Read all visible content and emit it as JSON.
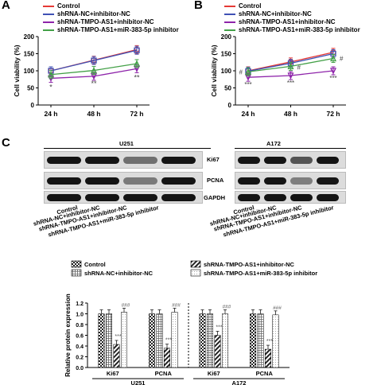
{
  "panels": {
    "a": "A",
    "b": "B",
    "c": "C"
  },
  "viability": {
    "ylabel": "Cell viability (%)",
    "xticks": [
      "24 h",
      "48 h",
      "72 h"
    ],
    "yticks": [
      "0",
      "50",
      "100",
      "150",
      "200"
    ],
    "legend": [
      "Control",
      "shRNA-NC+inhibitor-NC",
      "shRNA-TMPO-AS1+inhibitor-NC",
      "shRNA-TMPO-AS1+miR-383-5p inhibitor"
    ],
    "colors": [
      "#e53935",
      "#3f51b5",
      "#8e24aa",
      "#43a047"
    ],
    "sigA": {
      "s24": "*",
      "s48": "**",
      "s72": "**"
    },
    "sigB": {
      "s24": "***",
      "s48": "***",
      "s72": "***",
      "h24": "#",
      "h48": "#",
      "h72": "#"
    }
  },
  "blots": {
    "u251": "U251",
    "a172": "A172",
    "rows": [
      "Ki67",
      "PCNA",
      "GAPDH"
    ],
    "lane_labels": [
      "Control",
      "shRNA-NC+inhibitor-NC",
      "shRNA-TMPO-AS1+inhibitor-NC",
      "shRNA-TMPO-AS1+miR-383-5p inhibitor"
    ]
  },
  "bars": {
    "legend": [
      "Control",
      "shRNA-NC+inhibitor-NC",
      "shRNA-TMPO-AS1+inhibitor-NC",
      "shRNA-TMPO-AS1+miR-383-5p inhibitor"
    ],
    "ylabel": "Relative protein expression",
    "yticks": [
      "0.0",
      "0.2",
      "0.4",
      "0.6",
      "0.8",
      "1.0",
      "1.2"
    ],
    "groups": [
      "Ki67",
      "PCNA",
      "Ki67",
      "PCNA"
    ],
    "lines": [
      "U251",
      "A172"
    ],
    "sig1": "***",
    "sig2": "###"
  },
  "chart_data": [
    {
      "type": "line",
      "panel": "A",
      "x": [
        "24 h",
        "48 h",
        "72 h"
      ],
      "ylabel": "Cell viability (%)",
      "ylim": [
        0,
        200
      ],
      "series": [
        {
          "name": "Control",
          "values": [
            100,
            131,
            162
          ]
        },
        {
          "name": "shRNA-NC+inhibitor-NC",
          "values": [
            100,
            130,
            160
          ]
        },
        {
          "name": "shRNA-TMPO-AS1+inhibitor-NC",
          "values": [
            78,
            84,
            106
          ]
        },
        {
          "name": "shRNA-TMPO-AS1+miR-383-5p inhibitor",
          "values": [
            89,
            101,
            121
          ]
        }
      ]
    },
    {
      "type": "line",
      "panel": "B",
      "x": [
        "24 h",
        "48 h",
        "72 h"
      ],
      "ylabel": "Cell viability (%)",
      "ylim": [
        0,
        200
      ],
      "series": [
        {
          "name": "Control",
          "values": [
            100,
            126,
            154
          ]
        },
        {
          "name": "shRNA-NC+inhibitor-NC",
          "values": [
            99,
            122,
            150
          ]
        },
        {
          "name": "shRNA-TMPO-AS1+inhibitor-NC",
          "values": [
            81,
            86,
            100
          ]
        },
        {
          "name": "shRNA-TMPO-AS1+miR-383-5p inhibitor",
          "values": [
            97,
            113,
            136
          ]
        }
      ]
    },
    {
      "type": "bar",
      "panel": "C",
      "categories": [
        "Ki67 U251",
        "PCNA U251",
        "Ki67 A172",
        "PCNA A172"
      ],
      "ylabel": "Relative protein expression",
      "ylim": [
        0,
        1.2
      ],
      "series": [
        {
          "name": "Control",
          "values": [
            1.0,
            1.0,
            1.0,
            1.0
          ]
        },
        {
          "name": "shRNA-NC+inhibitor-NC",
          "values": [
            1.0,
            1.0,
            1.0,
            1.0
          ]
        },
        {
          "name": "shRNA-TMPO-AS1+inhibitor-NC",
          "values": [
            0.43,
            0.36,
            0.6,
            0.34
          ]
        },
        {
          "name": "shRNA-TMPO-AS1+miR-383-5p inhibitor",
          "values": [
            1.03,
            1.03,
            1.0,
            0.98
          ]
        }
      ]
    }
  ]
}
